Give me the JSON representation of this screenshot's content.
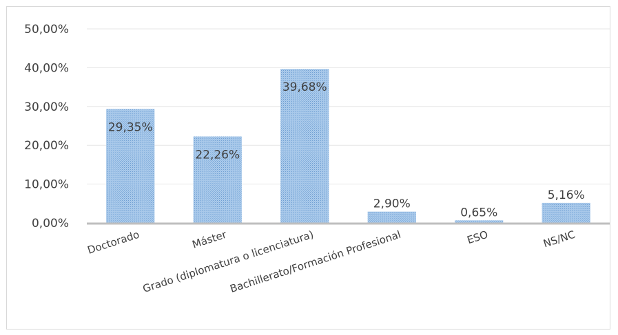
{
  "chart_data": {
    "type": "bar",
    "categories": [
      "Doctorado",
      "Máster",
      "Grado (diplomatura o licenciatura)",
      "Bachillerato/Formación Profesional",
      "ESO",
      "NS/NC"
    ],
    "values": [
      29.35,
      22.26,
      39.68,
      2.9,
      0.65,
      5.16
    ],
    "data_labels": [
      "29,35%",
      "22,26%",
      "39,68%",
      "2,90%",
      "0,65%",
      "5,16%"
    ],
    "y_ticks": [
      0,
      10,
      20,
      30,
      40,
      50
    ],
    "y_tick_labels": [
      "0,00%",
      "10,00%",
      "20,00%",
      "30,00%",
      "40,00%",
      "50,00%"
    ],
    "ylim": [
      0,
      50
    ],
    "grid": true,
    "legend": "none",
    "bar_color": "#9dc3e6",
    "bar_pattern_color": "#7aa7d6",
    "title": "",
    "xlabel": "",
    "ylabel": ""
  }
}
